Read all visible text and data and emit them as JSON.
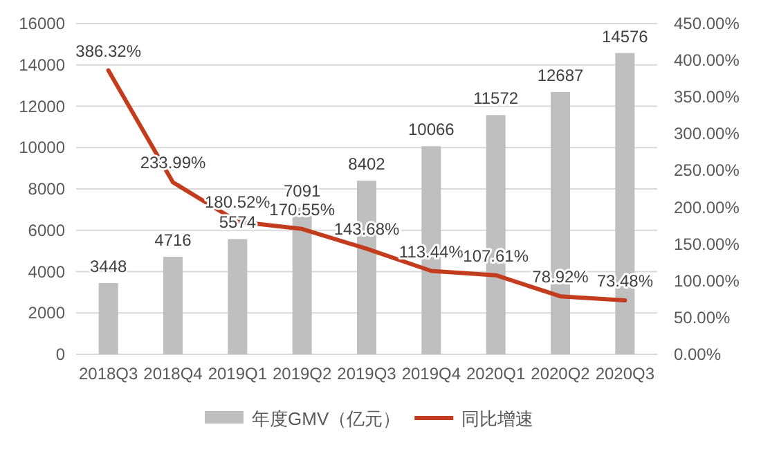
{
  "chart_data": {
    "type": "bar",
    "categories": [
      "2018Q3",
      "2018Q4",
      "2019Q1",
      "2019Q2",
      "2019Q3",
      "2019Q4",
      "2020Q1",
      "2020Q2",
      "2020Q3"
    ],
    "series": [
      {
        "name": "年度GMV（亿元）",
        "color": "#bfbfbf",
        "values": [
          3448,
          4716,
          5574,
          7091,
          8402,
          10066,
          11572,
          12687,
          14576
        ],
        "value_labels": [
          "3448",
          "4716",
          "5574",
          "7091",
          "8402",
          "10066",
          "11572",
          "12687",
          "14576"
        ]
      },
      {
        "name": "同比增速",
        "type": "line",
        "axis": "y2",
        "color": "#c43c1e",
        "values": [
          386.32,
          233.99,
          180.52,
          170.55,
          143.68,
          113.44,
          107.61,
          78.92,
          73.48
        ],
        "value_labels": [
          "386.32%",
          "233.99%",
          "180.52%",
          "170.55%",
          "143.68%",
          "113.44%",
          "107.61%",
          "78.92%",
          "73.48%"
        ]
      }
    ],
    "ylim": [
      0,
      16000
    ],
    "yticks": [
      0,
      2000,
      4000,
      6000,
      8000,
      10000,
      12000,
      14000,
      16000
    ],
    "y2lim": [
      0,
      450
    ],
    "y2ticks": [
      {
        "value": 0,
        "label": "0.00%"
      },
      {
        "value": 50,
        "label": "50.00%"
      },
      {
        "value": 100,
        "label": "100.00%"
      },
      {
        "value": 150,
        "label": "150.00%"
      },
      {
        "value": 200,
        "label": "200.00%"
      },
      {
        "value": 250,
        "label": "250.00%"
      },
      {
        "value": 300,
        "label": "300.00%"
      },
      {
        "value": 350,
        "label": "350.00%"
      },
      {
        "value": 400,
        "label": "400.00%"
      },
      {
        "value": 450,
        "label": "450.00%"
      }
    ],
    "grid": "y",
    "legend": "bottom",
    "marker": "none",
    "line_style": "solid"
  }
}
